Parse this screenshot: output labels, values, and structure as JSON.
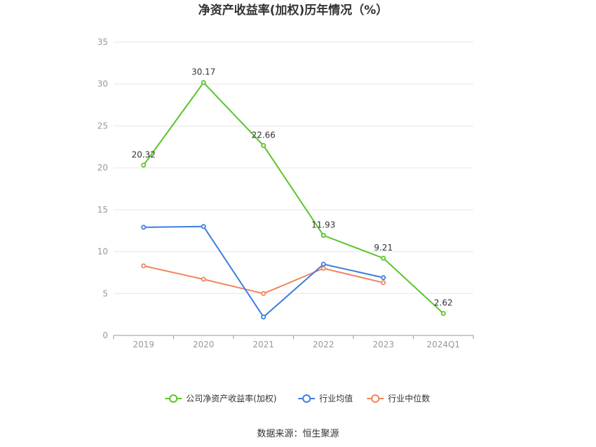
{
  "chart_data": {
    "type": "line",
    "title": "净资产收益率(加权)历年情况（%）",
    "categories": [
      "2019",
      "2020",
      "2021",
      "2022",
      "2023",
      "2024Q1"
    ],
    "ylim": [
      0,
      35
    ],
    "yticks": [
      0,
      5,
      10,
      15,
      20,
      25,
      30,
      35
    ],
    "grid": true,
    "legend_position": "bottom",
    "series": [
      {
        "name": "公司净资产收益率(加权)",
        "color": "#5cc42b",
        "values": [
          20.32,
          30.17,
          22.66,
          11.93,
          9.21,
          2.62
        ],
        "labels": [
          "20.32",
          "30.17",
          "22.66",
          "11.93",
          "9.21",
          "2.62"
        ],
        "show_labels": true
      },
      {
        "name": "行业均值",
        "color": "#3d7ee0",
        "values": [
          12.9,
          13.0,
          2.2,
          8.5,
          6.9,
          null
        ],
        "show_labels": false
      },
      {
        "name": "行业中位数",
        "color": "#f0865b",
        "values": [
          8.3,
          6.7,
          5.0,
          8.0,
          6.3,
          null
        ],
        "show_labels": false
      }
    ],
    "source": "数据来源：恒生聚源"
  }
}
